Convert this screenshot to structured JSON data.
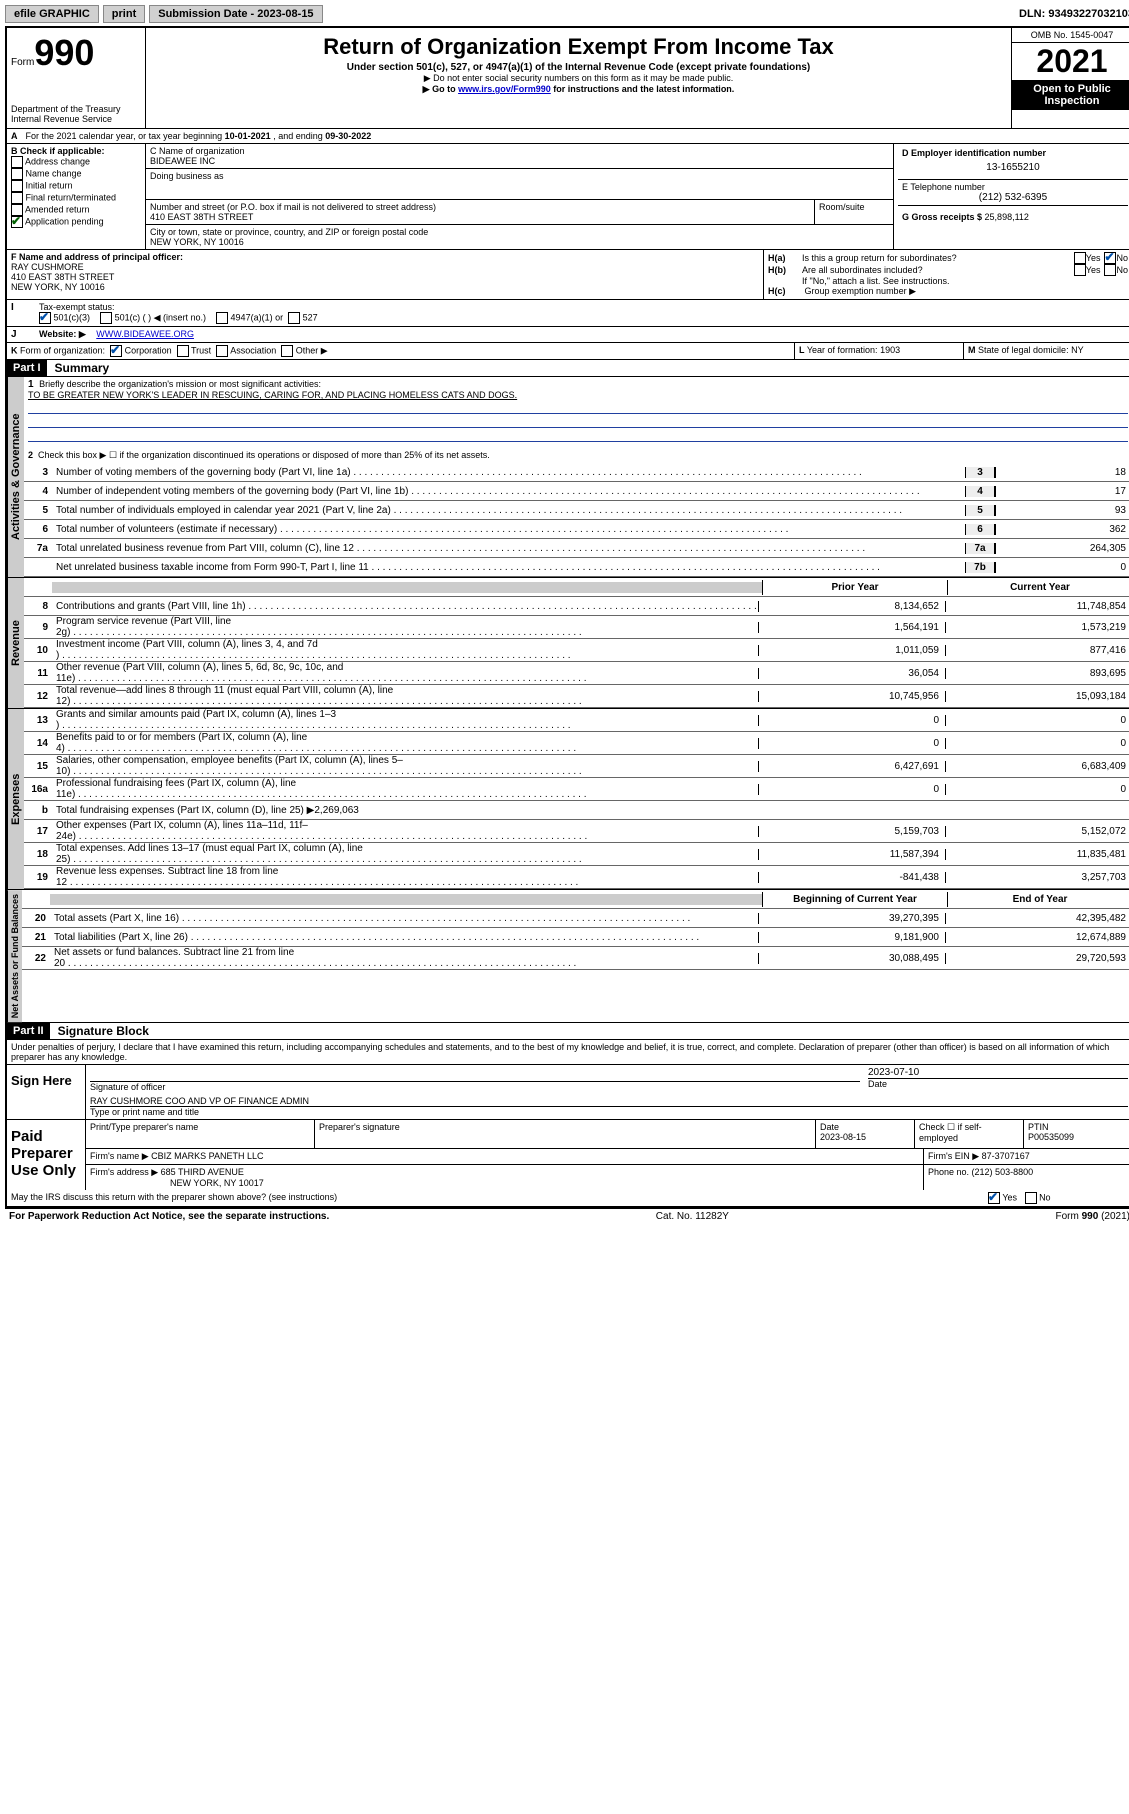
{
  "topbar": {
    "efile": "efile GRAPHIC",
    "print": "print",
    "sub_lbl": "Submission Date - ",
    "sub_date": "2023-08-15",
    "dln_lbl": "DLN: ",
    "dln": "93493227032103"
  },
  "header": {
    "form_word": "Form",
    "form_num": "990",
    "dept": "Department of the Treasury",
    "irs": "Internal Revenue Service",
    "title": "Return of Organization Exempt From Income Tax",
    "sub1": "Under section 501(c), 527, or 4947(a)(1) of the Internal Revenue Code (except private foundations)",
    "sub2": "▶ Do not enter social security numbers on this form as it may be made public.",
    "sub3_pre": "▶ Go to ",
    "sub3_link": "www.irs.gov/Form990",
    "sub3_post": " for instructions and the latest information.",
    "omb": "OMB No. 1545-0047",
    "year": "2021",
    "inspect1": "Open to Public",
    "inspect2": "Inspection"
  },
  "lineA": {
    "text_pre": "For the 2021 calendar year, or tax year beginning ",
    "begin": "10-01-2021",
    "text_mid": " , and ending ",
    "end": "09-30-2022"
  },
  "boxB": {
    "title": "B Check if applicable:",
    "opts": [
      "Address change",
      "Name change",
      "Initial return",
      "Final return/terminated",
      "Amended return",
      "Application pending"
    ]
  },
  "boxC": {
    "lbl": "C Name of organization",
    "name": "BIDEAWEE INC",
    "dba_lbl": "Doing business as",
    "street_lbl": "Number and street (or P.O. box if mail is not delivered to street address)",
    "room_lbl": "Room/suite",
    "street": "410 EAST 38TH STREET",
    "city_lbl": "City or town, state or province, country, and ZIP or foreign postal code",
    "city": "NEW YORK, NY  10016"
  },
  "boxD": {
    "lbl": "D Employer identification number",
    "val": "13-1655210"
  },
  "boxE": {
    "lbl": "E Telephone number",
    "val": "(212) 532-6395"
  },
  "boxG": {
    "lbl": "G Gross receipts $ ",
    "val": "25,898,112"
  },
  "boxF": {
    "lbl": "F Name and address of principal officer:",
    "l1": "RAY CUSHMORE",
    "l2": "410 EAST 38TH STREET",
    "l3": "NEW YORK, NY  10016"
  },
  "boxH": {
    "a_lbl": "H(a)",
    "a_txt": "Is this a group return for subordinates?",
    "b_lbl": "H(b)",
    "b_txt": "Are all subordinates included?",
    "c_lbl": "H(c)",
    "c_txt": "Group exemption number ▶",
    "note": "If \"No,\" attach a list. See instructions.",
    "yes": "Yes",
    "no": "No"
  },
  "lineI": {
    "lbl": "I",
    "txt": "Tax-exempt status:",
    "o1": "501(c)(3)",
    "o2": "501(c) (   ) ◀ (insert no.)",
    "o3": "4947(a)(1) or",
    "o4": "527"
  },
  "lineJ": {
    "lbl": "J",
    "txt": "Website: ▶",
    "val": "WWW.BIDEAWEE.ORG"
  },
  "lineK": {
    "lbl": "K",
    "txt": "Form of organization:",
    "o1": "Corporation",
    "o2": "Trust",
    "o3": "Association",
    "o4": "Other ▶"
  },
  "lineL": {
    "lbl": "L",
    "txt": "Year of formation: ",
    "val": "1903"
  },
  "lineM": {
    "lbl": "M",
    "txt": "State of legal domicile: ",
    "val": "NY"
  },
  "part1": {
    "hdr": "Part I",
    "title": "Summary",
    "q1_lbl": "1",
    "q1_txt": "Briefly describe the organization's mission or most significant activities:",
    "q1_val": "TO BE GREATER NEW YORK'S LEADER IN RESCUING, CARING FOR, AND PLACING HOMELESS CATS AND DOGS.",
    "q2_lbl": "2",
    "q2_txt": "Check this box ▶ ☐  if the organization discontinued its operations or disposed of more than 25% of its net assets.",
    "rows_gov": [
      {
        "n": "3",
        "d": "Number of voting members of the governing body (Part VI, line 1a)",
        "b": "3",
        "v": "18"
      },
      {
        "n": "4",
        "d": "Number of independent voting members of the governing body (Part VI, line 1b)",
        "b": "4",
        "v": "17"
      },
      {
        "n": "5",
        "d": "Total number of individuals employed in calendar year 2021 (Part V, line 2a)",
        "b": "5",
        "v": "93"
      },
      {
        "n": "6",
        "d": "Total number of volunteers (estimate if necessary)",
        "b": "6",
        "v": "362"
      },
      {
        "n": "7a",
        "d": "Total unrelated business revenue from Part VIII, column (C), line 12",
        "b": "7a",
        "v": "264,305"
      },
      {
        "n": "",
        "d": "Net unrelated business taxable income from Form 990-T, Part I, line 11",
        "b": "7b",
        "v": "0"
      }
    ],
    "col_prior": "Prior Year",
    "col_curr": "Current Year",
    "rows_rev": [
      {
        "n": "8",
        "d": "Contributions and grants (Part VIII, line 1h)",
        "p": "8,134,652",
        "c": "11,748,854"
      },
      {
        "n": "9",
        "d": "Program service revenue (Part VIII, line 2g)",
        "p": "1,564,191",
        "c": "1,573,219"
      },
      {
        "n": "10",
        "d": "Investment income (Part VIII, column (A), lines 3, 4, and 7d )",
        "p": "1,011,059",
        "c": "877,416"
      },
      {
        "n": "11",
        "d": "Other revenue (Part VIII, column (A), lines 5, 6d, 8c, 9c, 10c, and 11e)",
        "p": "36,054",
        "c": "893,695"
      },
      {
        "n": "12",
        "d": "Total revenue—add lines 8 through 11 (must equal Part VIII, column (A), line 12)",
        "p": "10,745,956",
        "c": "15,093,184"
      }
    ],
    "rows_exp": [
      {
        "n": "13",
        "d": "Grants and similar amounts paid (Part IX, column (A), lines 1–3 )",
        "p": "0",
        "c": "0"
      },
      {
        "n": "14",
        "d": "Benefits paid to or for members (Part IX, column (A), line 4)",
        "p": "0",
        "c": "0"
      },
      {
        "n": "15",
        "d": "Salaries, other compensation, employee benefits (Part IX, column (A), lines 5–10)",
        "p": "6,427,691",
        "c": "6,683,409"
      },
      {
        "n": "16a",
        "d": "Professional fundraising fees (Part IX, column (A), line 11e)",
        "p": "0",
        "c": "0"
      },
      {
        "n": "b",
        "d": "Total fundraising expenses (Part IX, column (D), line 25) ▶2,269,063",
        "p": "",
        "c": "",
        "shaded": true
      },
      {
        "n": "17",
        "d": "Other expenses (Part IX, column (A), lines 11a–11d, 11f–24e)",
        "p": "5,159,703",
        "c": "5,152,072"
      },
      {
        "n": "18",
        "d": "Total expenses. Add lines 13–17 (must equal Part IX, column (A), line 25)",
        "p": "11,587,394",
        "c": "11,835,481"
      },
      {
        "n": "19",
        "d": "Revenue less expenses. Subtract line 18 from line 12",
        "p": "-841,438",
        "c": "3,257,703"
      }
    ],
    "col_begin": "Beginning of Current Year",
    "col_end": "End of Year",
    "rows_net": [
      {
        "n": "20",
        "d": "Total assets (Part X, line 16)",
        "p": "39,270,395",
        "c": "42,395,482"
      },
      {
        "n": "21",
        "d": "Total liabilities (Part X, line 26)",
        "p": "9,181,900",
        "c": "12,674,889"
      },
      {
        "n": "22",
        "d": "Net assets or fund balances. Subtract line 21 from line 20",
        "p": "30,088,495",
        "c": "29,720,593"
      }
    ],
    "tab_gov": "Activities & Governance",
    "tab_rev": "Revenue",
    "tab_exp": "Expenses",
    "tab_net": "Net Assets or Fund Balances"
  },
  "part2": {
    "hdr": "Part II",
    "title": "Signature Block",
    "decl": "Under penalties of perjury, I declare that I have examined this return, including accompanying schedules and statements, and to the best of my knowledge and belief, it is true, correct, and complete. Declaration of preparer (other than officer) is based on all information of which preparer has any knowledge."
  },
  "sign": {
    "here": "Sign Here",
    "sig_lbl": "Signature of officer",
    "date_lbl": "Date",
    "date_val": "2023-07-10",
    "name_lbl": "Type or print name and title",
    "name_val": "RAY CUSHMORE COO AND VP OF FINANCE ADMIN"
  },
  "paid": {
    "hdr": "Paid Preparer Use Only",
    "c1": "Print/Type preparer's name",
    "c2": "Preparer's signature",
    "c3_lbl": "Date",
    "c3_val": "2023-08-15",
    "c4_lbl": "Check ☐ if self-employed",
    "c5_lbl": "PTIN",
    "c5_val": "P00535099",
    "firm_name_lbl": "Firm's name      ▶",
    "firm_name": "CBIZ MARKS PANETH LLC",
    "firm_ein_lbl": "Firm's EIN ▶",
    "firm_ein": "87-3707167",
    "firm_addr_lbl": "Firm's address ▶",
    "firm_addr1": "685 THIRD AVENUE",
    "firm_addr2": "NEW YORK, NY  10017",
    "phone_lbl": "Phone no. ",
    "phone": "(212) 503-8800",
    "discuss": "May the IRS discuss this return with the preparer shown above? (see instructions)",
    "yes": "Yes",
    "no": "No"
  },
  "footer": {
    "l": "For Paperwork Reduction Act Notice, see the separate instructions.",
    "m": "Cat. No. 11282Y",
    "r": "Form 990 (2021)"
  }
}
